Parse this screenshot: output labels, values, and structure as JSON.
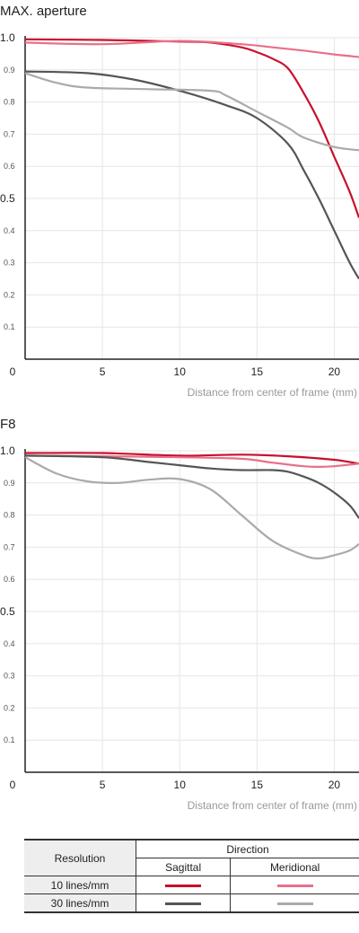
{
  "chart_data": [
    {
      "type": "line",
      "title": "MAX. aperture",
      "xlabel": "Distance from center of frame (mm)",
      "ylabel": "",
      "xlim": [
        0,
        21.6
      ],
      "ylim": [
        0,
        1.0
      ],
      "xticks": [
        "0",
        "5",
        "10",
        "15",
        "20"
      ],
      "yticks_major": [
        "1.0",
        "0.5"
      ],
      "yticks_minor": [
        "0.9",
        "0.8",
        "0.7",
        "0.6",
        "0.4",
        "0.3",
        "0.2",
        "0.1"
      ],
      "grid": true,
      "series": [
        {
          "resolution": "10 lines/mm",
          "direction": "Sagittal",
          "color": "#c8102e",
          "x": [
            0,
            5,
            10,
            12,
            14,
            15,
            16,
            17,
            18,
            19,
            20,
            21,
            21.6
          ],
          "y": [
            0.995,
            0.993,
            0.988,
            0.985,
            0.97,
            0.955,
            0.935,
            0.905,
            0.83,
            0.74,
            0.63,
            0.52,
            0.44
          ]
        },
        {
          "resolution": "10 lines/mm",
          "direction": "Meridional",
          "color": "#e8708a",
          "x": [
            0,
            5,
            10,
            14,
            16,
            18,
            20,
            21.6
          ],
          "y": [
            0.985,
            0.98,
            0.99,
            0.98,
            0.97,
            0.96,
            0.948,
            0.94
          ]
        },
        {
          "resolution": "30 lines/mm",
          "direction": "Sagittal",
          "color": "#555555",
          "x": [
            0,
            4,
            7,
            10,
            13,
            15,
            17,
            18,
            19,
            20,
            21,
            21.6
          ],
          "y": [
            0.895,
            0.89,
            0.87,
            0.835,
            0.79,
            0.75,
            0.67,
            0.59,
            0.5,
            0.4,
            0.3,
            0.25
          ]
        },
        {
          "resolution": "30 lines/mm",
          "direction": "Meridional",
          "color": "#aaaaaa",
          "x": [
            0,
            2,
            4,
            8,
            12,
            13,
            15,
            17,
            18,
            20,
            21.6
          ],
          "y": [
            0.89,
            0.86,
            0.845,
            0.84,
            0.835,
            0.82,
            0.77,
            0.72,
            0.69,
            0.66,
            0.65
          ]
        }
      ]
    },
    {
      "type": "line",
      "title": "F8",
      "xlabel": "Distance from center of frame (mm)",
      "ylabel": "",
      "xlim": [
        0,
        21.6
      ],
      "ylim": [
        0,
        1.0
      ],
      "xticks": [
        "0",
        "5",
        "10",
        "15",
        "20"
      ],
      "yticks_major": [
        "1.0",
        "0.5"
      ],
      "yticks_minor": [
        "0.9",
        "0.8",
        "0.7",
        "0.6",
        "0.4",
        "0.3",
        "0.2",
        "0.1"
      ],
      "grid": true,
      "series": [
        {
          "resolution": "10 lines/mm",
          "direction": "Sagittal",
          "color": "#c8102e",
          "x": [
            0,
            5,
            10,
            14,
            17,
            20,
            21.6
          ],
          "y": [
            0.993,
            0.993,
            0.985,
            0.988,
            0.983,
            0.972,
            0.96
          ]
        },
        {
          "resolution": "10 lines/mm",
          "direction": "Meridional",
          "color": "#e8708a",
          "x": [
            0,
            5,
            10,
            14,
            16,
            18,
            19,
            20,
            21.6
          ],
          "y": [
            0.985,
            0.983,
            0.98,
            0.975,
            0.963,
            0.952,
            0.95,
            0.952,
            0.96
          ]
        },
        {
          "resolution": "30 lines/mm",
          "direction": "Sagittal",
          "color": "#555555",
          "x": [
            0,
            5,
            8,
            10,
            12,
            14,
            16,
            17,
            18,
            19,
            20,
            21,
            21.6
          ],
          "y": [
            0.985,
            0.98,
            0.965,
            0.955,
            0.945,
            0.94,
            0.94,
            0.935,
            0.92,
            0.9,
            0.87,
            0.83,
            0.79
          ]
        },
        {
          "resolution": "30 lines/mm",
          "direction": "Meridional",
          "color": "#aaaaaa",
          "x": [
            0,
            2,
            4,
            6,
            8,
            10,
            12,
            14,
            16,
            18,
            19,
            20,
            21,
            21.6
          ],
          "y": [
            0.98,
            0.93,
            0.905,
            0.9,
            0.91,
            0.912,
            0.88,
            0.8,
            0.72,
            0.675,
            0.665,
            0.675,
            0.69,
            0.71
          ]
        }
      ]
    }
  ],
  "legend": {
    "resolution_header": "Resolution",
    "direction_header": "Direction",
    "sagittal_header": "Sagittal",
    "meridional_header": "Meridional",
    "rows": [
      {
        "label": "10 lines/mm",
        "sagittal_color": "#c8102e",
        "meridional_color": "#e8708a"
      },
      {
        "label": "30 lines/mm",
        "sagittal_color": "#555555",
        "meridional_color": "#aaaaaa"
      }
    ]
  }
}
